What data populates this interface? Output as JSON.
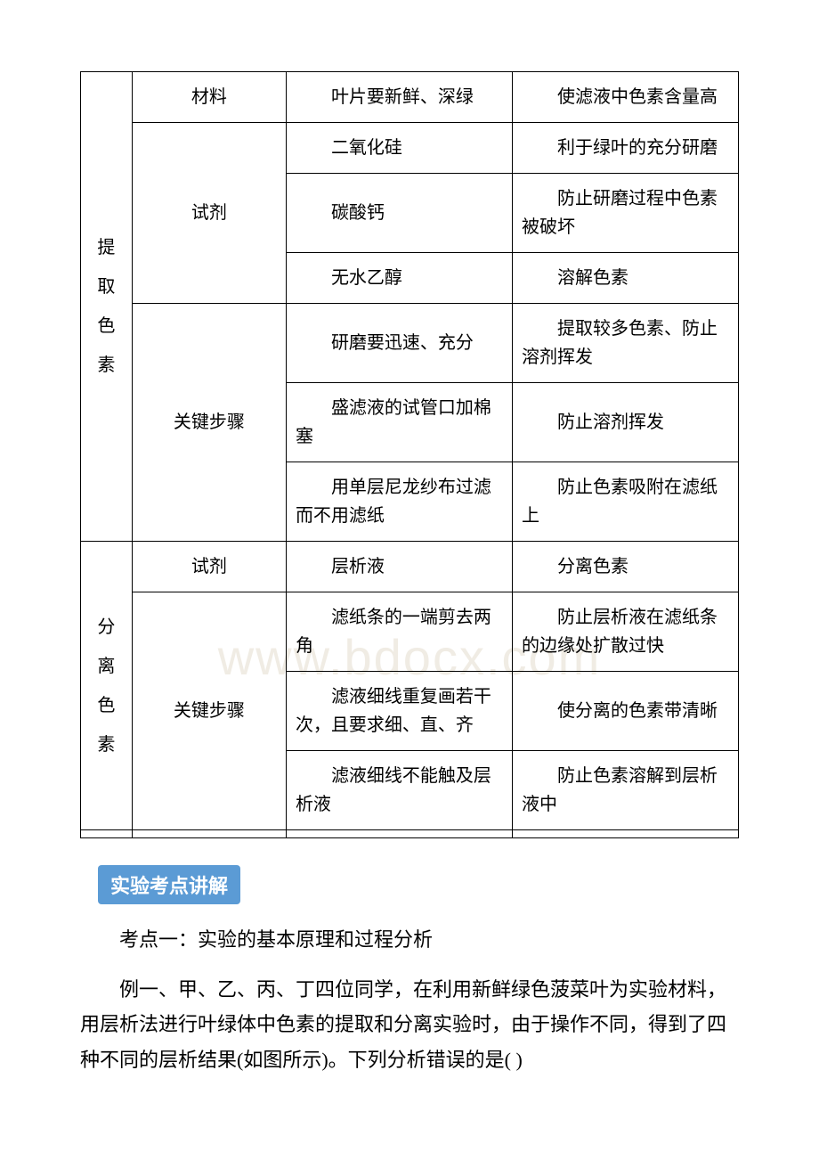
{
  "table": {
    "border_color": "#000000",
    "font_size": 20,
    "sections": [
      {
        "group_label": "提取色素",
        "rows": [
          {
            "category": "材料",
            "item": "叶片要新鲜、深绿",
            "purpose": "使滤液中色素含量高",
            "cat_span": 1
          },
          {
            "category": "试剂",
            "item": "二氧化硅",
            "purpose": "利于绿叶的充分研磨",
            "cat_span": 3
          },
          {
            "category": "",
            "item": "碳酸钙",
            "purpose": "防止研磨过程中色素被破坏"
          },
          {
            "category": "",
            "item": "无水乙醇",
            "purpose": "溶解色素"
          },
          {
            "category": "关键步骤",
            "item": "研磨要迅速、充分",
            "purpose": "提取较多色素、防止溶剂挥发",
            "cat_span": 3
          },
          {
            "category": "",
            "item": "盛滤液的试管口加棉塞",
            "purpose": "防止溶剂挥发"
          },
          {
            "category": "",
            "item": "用单层尼龙纱布过滤而不用滤纸",
            "purpose": "防止色素吸附在滤纸上"
          }
        ]
      },
      {
        "group_label": "分离色素",
        "rows": [
          {
            "category": "试剂",
            "item": "层析液",
            "purpose": "分离色素",
            "cat_span": 1
          },
          {
            "category": "关键步骤",
            "item": "滤纸条的一端剪去两角",
            "purpose": "防止层析液在滤纸条的边缘处扩散过快",
            "cat_span": 3
          },
          {
            "category": "",
            "item": "滤液细线重复画若干次，且要求细、直、齐",
            "purpose": "使分离的色素带清晰"
          },
          {
            "category": "",
            "item": "滤液细线不能触及层析液",
            "purpose": "防止色素溶解到层析液中"
          }
        ]
      }
    ]
  },
  "badge": {
    "text": "实验考点讲解",
    "bg_color": "#5b9bd5",
    "text_color": "#ffffff",
    "font_size": 22
  },
  "paragraphs": {
    "p1": "考点一：实验的基本原理和过程分析",
    "p2": "例一、甲、乙、丙、丁四位同学，在利用新鲜绿色菠菜叶为实验材料，用层析法进行叶绿体中色素的提取和分离实验时，由于操作不同，得到了四种不同的层析结果(如图所示)。下列分析错误的是(    )"
  },
  "watermark": {
    "text": "www.bdocx.com",
    "color": "#f0ece4",
    "font_size": 56
  },
  "labels": {
    "group1_chars": [
      "提",
      "取",
      "色",
      "素"
    ],
    "group2_chars": [
      "分",
      "离",
      "色",
      "素"
    ]
  }
}
